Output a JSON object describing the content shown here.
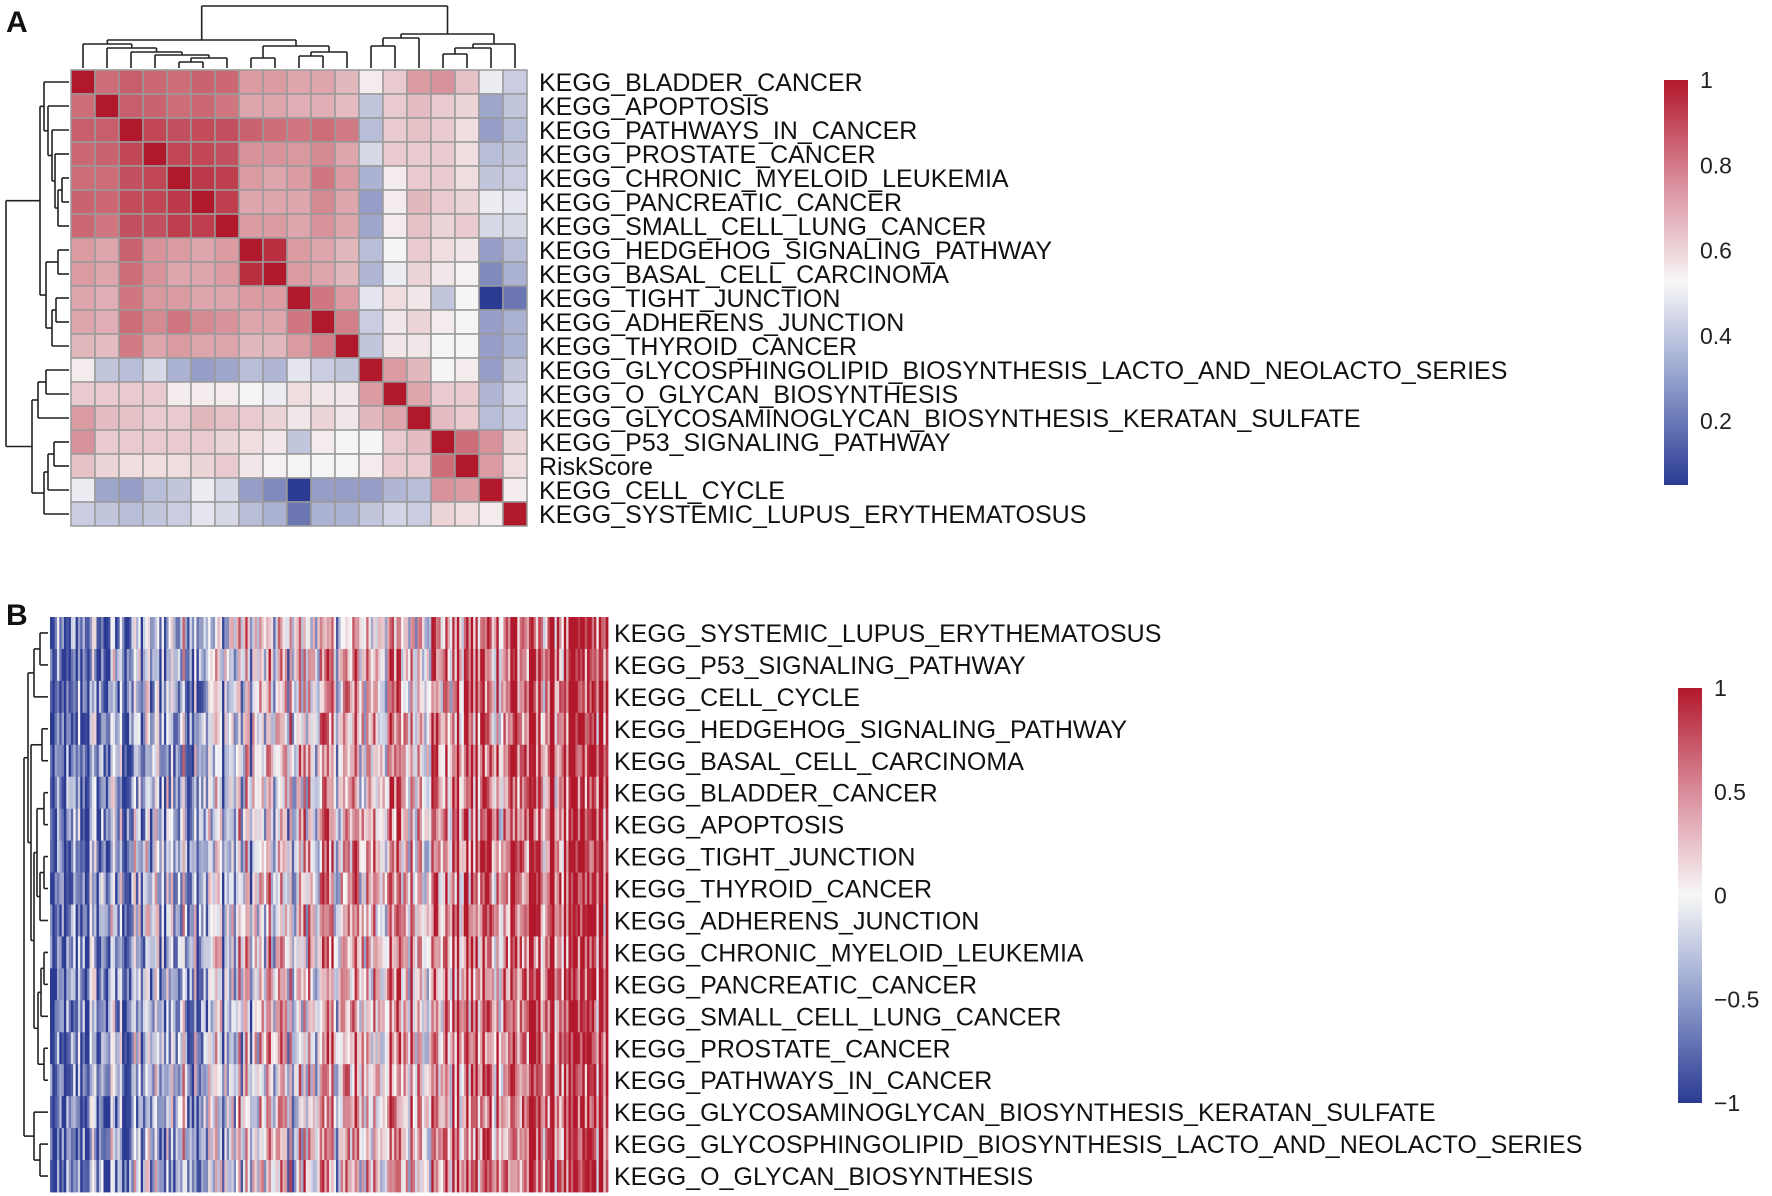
{
  "panels": {
    "a": {
      "label": "A"
    },
    "b": {
      "label": "B"
    }
  },
  "colors": {
    "low": "#2B3B93",
    "mid": "#F7F7F7",
    "high": "#B2182B",
    "grid": "#9a9a9a"
  },
  "chart_data": [
    {
      "panel": "A",
      "type": "heatmap",
      "title": "",
      "rows": [
        "KEGG_BLADDER_CANCER",
        "KEGG_APOPTOSIS",
        "KEGG_PATHWAYS_IN_CANCER",
        "KEGG_PROSTATE_CANCER",
        "KEGG_CHRONIC_MYELOID_LEUKEMIA",
        "KEGG_PANCREATIC_CANCER",
        "KEGG_SMALL_CELL_LUNG_CANCER",
        "KEGG_HEDGEHOG_SIGNALING_PATHWAY",
        "KEGG_BASAL_CELL_CARCINOMA",
        "KEGG_TIGHT_JUNCTION",
        "KEGG_ADHERENS_JUNCTION",
        "KEGG_THYROID_CANCER",
        "KEGG_GLYCOSPHINGOLIPID_BIOSYNTHESIS_LACTO_AND_NEOLACTO_SERIES",
        "KEGG_O_GLYCAN_BIOSYNTHESIS",
        "KEGG_GLYCOSAMINOGLYCAN_BIOSYNTHESIS_KERATAN_SULFATE",
        "KEGG_P53_SIGNALING_PATHWAY",
        "RiskScore",
        "KEGG_CELL_CYCLE",
        "KEGG_SYSTEMIC_LUPUS_ERYTHEMATOSUS"
      ],
      "values": [
        [
          1.0,
          0.82,
          0.85,
          0.83,
          0.82,
          0.84,
          0.83,
          0.72,
          0.72,
          0.7,
          0.7,
          0.66,
          0.55,
          0.62,
          0.72,
          0.74,
          0.64,
          0.5,
          0.42
        ],
        [
          0.82,
          1.0,
          0.85,
          0.84,
          0.82,
          0.83,
          0.8,
          0.7,
          0.7,
          0.68,
          0.68,
          0.65,
          0.4,
          0.62,
          0.65,
          0.62,
          0.6,
          0.32,
          0.4
        ],
        [
          0.85,
          0.85,
          1.0,
          0.9,
          0.88,
          0.89,
          0.88,
          0.84,
          0.82,
          0.8,
          0.82,
          0.79,
          0.38,
          0.62,
          0.64,
          0.62,
          0.58,
          0.3,
          0.38
        ],
        [
          0.83,
          0.84,
          0.9,
          1.0,
          0.9,
          0.9,
          0.88,
          0.74,
          0.74,
          0.73,
          0.76,
          0.7,
          0.45,
          0.62,
          0.62,
          0.62,
          0.58,
          0.38,
          0.4
        ],
        [
          0.82,
          0.82,
          0.88,
          0.9,
          1.0,
          0.93,
          0.92,
          0.72,
          0.7,
          0.72,
          0.8,
          0.72,
          0.35,
          0.55,
          0.62,
          0.62,
          0.58,
          0.4,
          0.42
        ],
        [
          0.84,
          0.83,
          0.89,
          0.9,
          0.93,
          1.0,
          0.92,
          0.7,
          0.7,
          0.7,
          0.76,
          0.7,
          0.3,
          0.55,
          0.66,
          0.62,
          0.6,
          0.5,
          0.48
        ],
        [
          0.83,
          0.8,
          0.88,
          0.88,
          0.92,
          0.92,
          1.0,
          0.72,
          0.72,
          0.7,
          0.74,
          0.7,
          0.32,
          0.55,
          0.64,
          0.6,
          0.62,
          0.45,
          0.45
        ],
        [
          0.72,
          0.7,
          0.84,
          0.74,
          0.72,
          0.7,
          0.72,
          1.0,
          0.95,
          0.72,
          0.7,
          0.66,
          0.38,
          0.52,
          0.62,
          0.58,
          0.56,
          0.3,
          0.38
        ],
        [
          0.72,
          0.7,
          0.82,
          0.74,
          0.7,
          0.7,
          0.72,
          0.95,
          1.0,
          0.72,
          0.7,
          0.66,
          0.36,
          0.5,
          0.6,
          0.56,
          0.54,
          0.25,
          0.35
        ],
        [
          0.7,
          0.68,
          0.8,
          0.73,
          0.72,
          0.7,
          0.7,
          0.72,
          0.72,
          1.0,
          0.8,
          0.72,
          0.48,
          0.58,
          0.56,
          0.4,
          0.52,
          0.05,
          0.2
        ],
        [
          0.7,
          0.68,
          0.82,
          0.76,
          0.8,
          0.76,
          0.74,
          0.7,
          0.7,
          0.8,
          1.0,
          0.78,
          0.42,
          0.56,
          0.6,
          0.55,
          0.52,
          0.3,
          0.35
        ],
        [
          0.66,
          0.65,
          0.79,
          0.7,
          0.72,
          0.7,
          0.7,
          0.66,
          0.66,
          0.72,
          0.78,
          1.0,
          0.4,
          0.56,
          0.56,
          0.52,
          0.52,
          0.3,
          0.35
        ],
        [
          0.55,
          0.4,
          0.38,
          0.45,
          0.35,
          0.3,
          0.32,
          0.38,
          0.36,
          0.48,
          0.42,
          0.4,
          1.0,
          0.72,
          0.66,
          0.52,
          0.55,
          0.3,
          0.4
        ],
        [
          0.62,
          0.62,
          0.62,
          0.62,
          0.55,
          0.55,
          0.55,
          0.52,
          0.5,
          0.58,
          0.56,
          0.56,
          0.72,
          1.0,
          0.7,
          0.62,
          0.62,
          0.36,
          0.44
        ],
        [
          0.72,
          0.65,
          0.64,
          0.62,
          0.62,
          0.66,
          0.64,
          0.62,
          0.6,
          0.56,
          0.6,
          0.56,
          0.66,
          0.7,
          1.0,
          0.65,
          0.62,
          0.38,
          0.42
        ],
        [
          0.74,
          0.62,
          0.62,
          0.62,
          0.62,
          0.62,
          0.6,
          0.58,
          0.56,
          0.4,
          0.55,
          0.52,
          0.52,
          0.62,
          0.65,
          1.0,
          0.82,
          0.74,
          0.6
        ],
        [
          0.64,
          0.6,
          0.58,
          0.58,
          0.58,
          0.6,
          0.62,
          0.56,
          0.54,
          0.52,
          0.52,
          0.52,
          0.55,
          0.62,
          0.62,
          0.82,
          1.0,
          0.72,
          0.58
        ],
        [
          0.5,
          0.32,
          0.3,
          0.38,
          0.4,
          0.5,
          0.45,
          0.3,
          0.25,
          0.05,
          0.3,
          0.3,
          0.3,
          0.36,
          0.38,
          0.74,
          0.72,
          1.0,
          0.55
        ],
        [
          0.42,
          0.4,
          0.38,
          0.4,
          0.42,
          0.48,
          0.45,
          0.38,
          0.35,
          0.2,
          0.35,
          0.35,
          0.4,
          0.44,
          0.42,
          0.6,
          0.58,
          0.55,
          1.0
        ]
      ],
      "colorbar": {
        "range": [
          0.05,
          1
        ],
        "ticks": [
          "1",
          "0.8",
          "0.6",
          "0.4",
          "0.2"
        ],
        "tick_values": [
          1,
          0.8,
          0.6,
          0.4,
          0.2
        ]
      }
    },
    {
      "panel": "B",
      "type": "heatmap",
      "title": "",
      "rows": [
        "KEGG_SYSTEMIC_LUPUS_ERYTHEMATOSUS",
        "KEGG_P53_SIGNALING_PATHWAY",
        "KEGG_CELL_CYCLE",
        "KEGG_HEDGEHOG_SIGNALING_PATHWAY",
        "KEGG_BASAL_CELL_CARCINOMA",
        "KEGG_BLADDER_CANCER",
        "KEGG_APOPTOSIS",
        "KEGG_TIGHT_JUNCTION",
        "KEGG_THYROID_CANCER",
        "KEGG_ADHERENS_JUNCTION",
        "KEGG_CHRONIC_MYELOID_LEUKEMIA",
        "KEGG_PANCREATIC_CANCER",
        "KEGG_SMALL_CELL_LUNG_CANCER",
        "KEGG_PROSTATE_CANCER",
        "KEGG_PATHWAYS_IN_CANCER",
        "KEGG_GLYCOSAMINOGLYCAN_BIOSYNTHESIS_KERATAN_SULFATE",
        "KEGG_GLYCOSPHINGOLIPID_BIOSYNTHESIS_LACTO_AND_NEOLACTO_SERIES",
        "KEGG_O_GLYCAN_BIOSYNTHESIS"
      ],
      "samples_ordered_by": "RiskScore",
      "sample_count": 240,
      "trend": "low (blue) for low-risk samples on the left to high (red) for high-risk samples on the right",
      "colorbar": {
        "range": [
          -1,
          1
        ],
        "ticks": [
          "1",
          "0.5",
          "0",
          "−0.5",
          "−1"
        ],
        "tick_values": [
          1,
          0.5,
          0,
          -0.5,
          -1
        ]
      }
    }
  ]
}
